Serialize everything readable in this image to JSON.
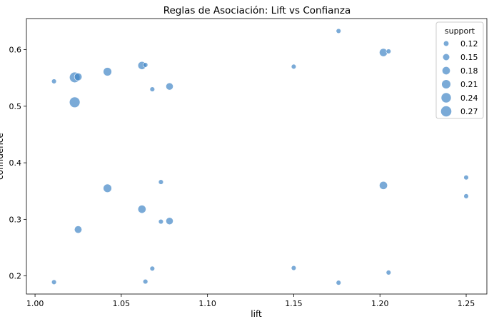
{
  "chart_data": {
    "type": "scatter",
    "title": "Reglas de Asociación: Lift vs Confianza",
    "xlabel": "lift",
    "ylabel": "confidence",
    "xlim": [
      0.995,
      1.262
    ],
    "ylim": [
      0.168,
      0.655
    ],
    "x_ticks": [
      1.0,
      1.05,
      1.1,
      1.15,
      1.2,
      1.25
    ],
    "x_tick_labels": [
      "1.00",
      "1.05",
      "1.10",
      "1.15",
      "1.20",
      "1.25"
    ],
    "y_ticks": [
      0.2,
      0.3,
      0.4,
      0.5,
      0.6
    ],
    "y_tick_labels": [
      "0.2",
      "0.3",
      "0.4",
      "0.5",
      "0.6"
    ],
    "grid": false,
    "point_color": "#3b82c4",
    "size_variable": "support",
    "legend": {
      "title": "support",
      "position": "top-right",
      "entries": [
        {
          "label": "0.12",
          "value": 0.12
        },
        {
          "label": "0.15",
          "value": 0.15
        },
        {
          "label": "0.18",
          "value": 0.18
        },
        {
          "label": "0.21",
          "value": 0.21
        },
        {
          "label": "0.24",
          "value": 0.24
        },
        {
          "label": "0.27",
          "value": 0.27
        }
      ]
    },
    "points": [
      {
        "lift": 1.011,
        "confidence": 0.544,
        "support": 0.11
      },
      {
        "lift": 1.011,
        "confidence": 0.189,
        "support": 0.11
      },
      {
        "lift": 1.023,
        "confidence": 0.551,
        "support": 0.255
      },
      {
        "lift": 1.023,
        "confidence": 0.507,
        "support": 0.26
      },
      {
        "lift": 1.025,
        "confidence": 0.552,
        "support": 0.17
      },
      {
        "lift": 1.025,
        "confidence": 0.282,
        "support": 0.165
      },
      {
        "lift": 1.042,
        "confidence": 0.561,
        "support": 0.19
      },
      {
        "lift": 1.042,
        "confidence": 0.355,
        "support": 0.19
      },
      {
        "lift": 1.062,
        "confidence": 0.572,
        "support": 0.18
      },
      {
        "lift": 1.062,
        "confidence": 0.318,
        "support": 0.18
      },
      {
        "lift": 1.064,
        "confidence": 0.573,
        "support": 0.11
      },
      {
        "lift": 1.064,
        "confidence": 0.19,
        "support": 0.11
      },
      {
        "lift": 1.068,
        "confidence": 0.53,
        "support": 0.11
      },
      {
        "lift": 1.068,
        "confidence": 0.213,
        "support": 0.11
      },
      {
        "lift": 1.073,
        "confidence": 0.366,
        "support": 0.11
      },
      {
        "lift": 1.073,
        "confidence": 0.296,
        "support": 0.11
      },
      {
        "lift": 1.078,
        "confidence": 0.535,
        "support": 0.16
      },
      {
        "lift": 1.078,
        "confidence": 0.297,
        "support": 0.16
      },
      {
        "lift": 1.15,
        "confidence": 0.57,
        "support": 0.11
      },
      {
        "lift": 1.15,
        "confidence": 0.214,
        "support": 0.11
      },
      {
        "lift": 1.176,
        "confidence": 0.633,
        "support": 0.11
      },
      {
        "lift": 1.176,
        "confidence": 0.188,
        "support": 0.11
      },
      {
        "lift": 1.202,
        "confidence": 0.595,
        "support": 0.18
      },
      {
        "lift": 1.202,
        "confidence": 0.36,
        "support": 0.18
      },
      {
        "lift": 1.205,
        "confidence": 0.597,
        "support": 0.11
      },
      {
        "lift": 1.205,
        "confidence": 0.206,
        "support": 0.11
      },
      {
        "lift": 1.25,
        "confidence": 0.374,
        "support": 0.11
      },
      {
        "lift": 1.25,
        "confidence": 0.341,
        "support": 0.11
      }
    ]
  }
}
